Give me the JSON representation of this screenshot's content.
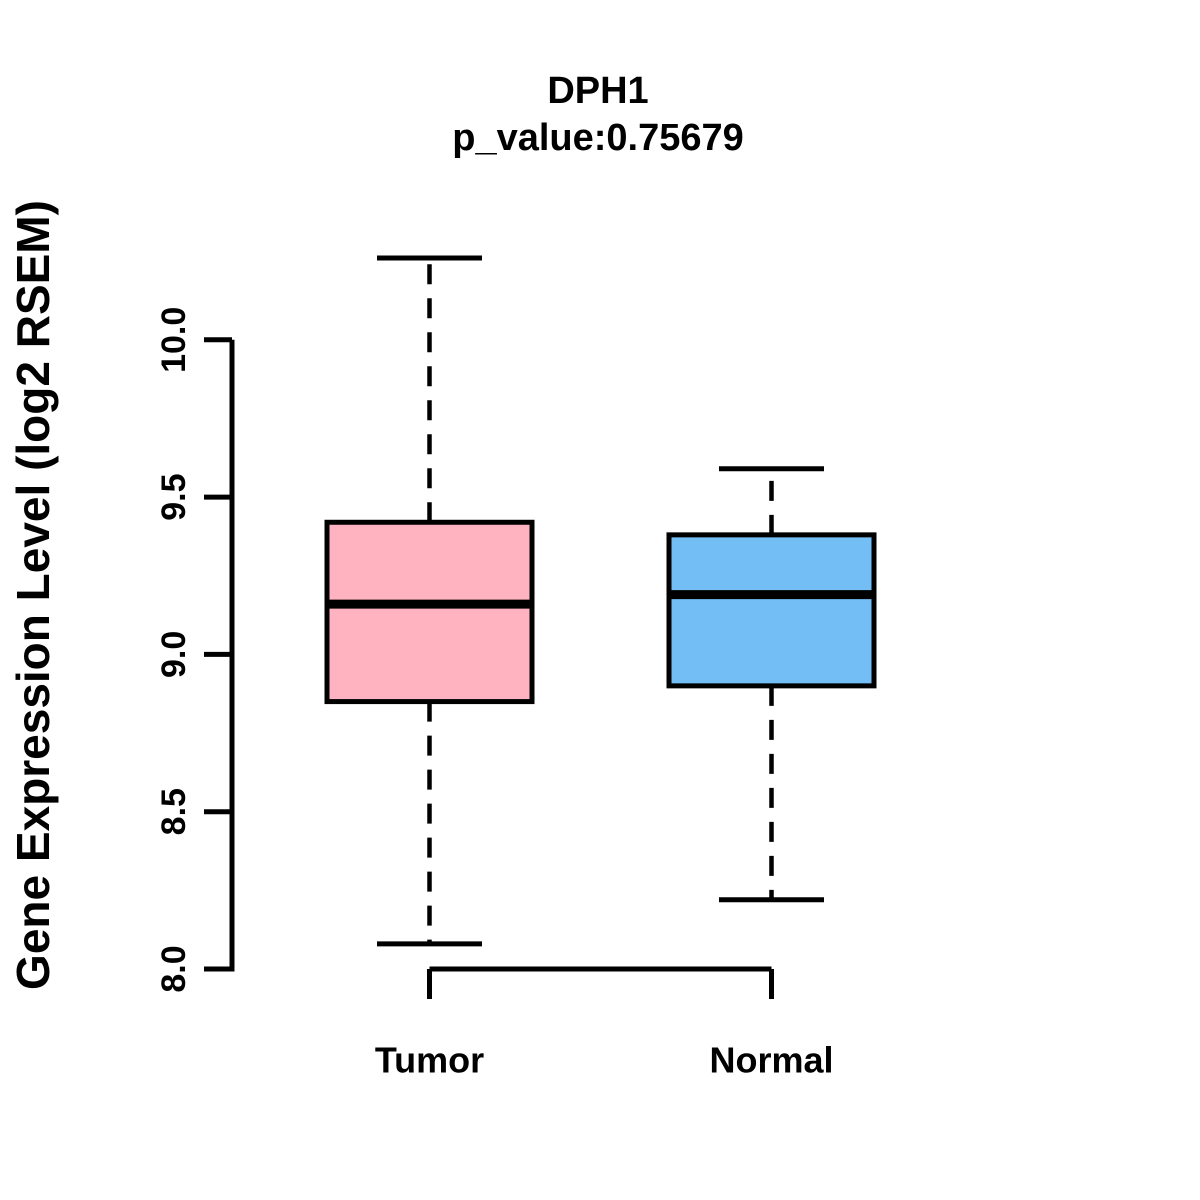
{
  "title": {
    "line1": "DPH1",
    "line2": "p_value:0.75679"
  },
  "chart_data": {
    "type": "boxplot",
    "title": "DPH1",
    "subtitle": "p_value:0.75679",
    "p_value": 0.75679,
    "gene": "DPH1",
    "ylabel": "Gene Expression Level (log2 RSEM)",
    "xlabel": "",
    "categories": [
      "Tumor",
      "Normal"
    ],
    "yticks": [
      "8.0",
      "8.5",
      "9.0",
      "9.5",
      "10.0"
    ],
    "ylim": [
      8.0,
      10.0
    ],
    "grid": false,
    "legend": null,
    "series": [
      {
        "name": "Tumor",
        "color": "#FFB3C1",
        "whisker_low": 8.08,
        "q1": 8.85,
        "median": 9.16,
        "q3": 9.42,
        "whisker_high": 10.26
      },
      {
        "name": "Normal",
        "color": "#73BEF5",
        "whisker_low": 8.22,
        "q1": 8.9,
        "median": 9.19,
        "q3": 9.38,
        "whisker_high": 9.59
      }
    ]
  },
  "colors": {
    "axis": "#000000",
    "text": "#000000",
    "background": "#ffffff",
    "tumor_fill": "#FFB3C1",
    "normal_fill": "#73BEF5"
  }
}
